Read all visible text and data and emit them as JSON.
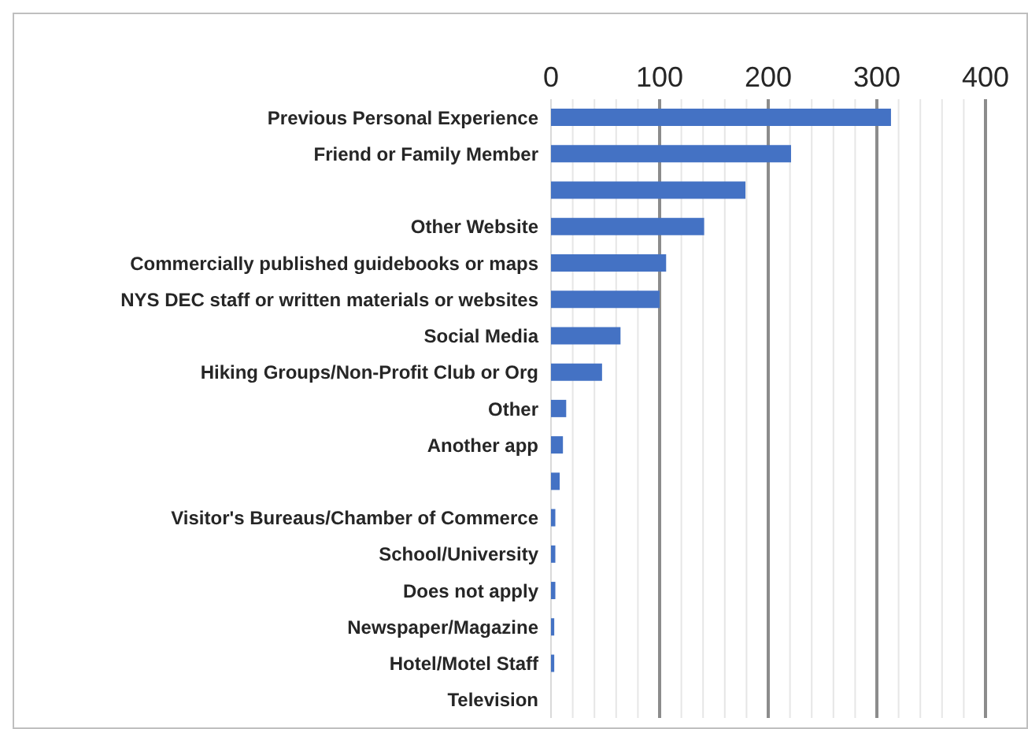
{
  "chart_data": {
    "type": "bar",
    "orientation": "horizontal",
    "categories": [
      "Previous Personal Experience",
      "Friend or Family Member",
      null,
      "Other Website",
      "Commercially published guidebooks or maps",
      "NYS DEC staff or written materials or websites",
      "Social Media",
      "Hiking Groups/Non-Profit Club or Org",
      "Other",
      "Another app",
      null,
      "Visitor's Bureaus/Chamber of Commerce",
      "School/University",
      "Does not apply",
      "Newspaper/Magazine",
      "Hotel/Motel Staff",
      "Television"
    ],
    "values": [
      313,
      221,
      179,
      141,
      106,
      100,
      64,
      47,
      14,
      11,
      8,
      4,
      4,
      4,
      3,
      3,
      0
    ],
    "color": "#4472c4",
    "xlim": [
      0,
      400
    ],
    "xticks": [
      0,
      {
        "value": 20,
        "label": null
      },
      {
        "value": 40,
        "label": null
      },
      {
        "value": 60,
        "label": null
      },
      {
        "value": 80,
        "label": null
      },
      100,
      {
        "value": 120,
        "label": null
      },
      {
        "value": 140,
        "label": null
      },
      {
        "value": 160,
        "label": null
      },
      {
        "value": 180,
        "label": null
      },
      200,
      {
        "value": 220,
        "label": null
      },
      {
        "value": 240,
        "label": null
      },
      {
        "value": 260,
        "label": null
      },
      {
        "value": 280,
        "label": null
      },
      300,
      {
        "value": 320,
        "label": null
      },
      {
        "value": 340,
        "label": null
      },
      {
        "value": 360,
        "label": null
      },
      {
        "value": 380,
        "label": null
      },
      400
    ],
    "grid": "x"
  }
}
